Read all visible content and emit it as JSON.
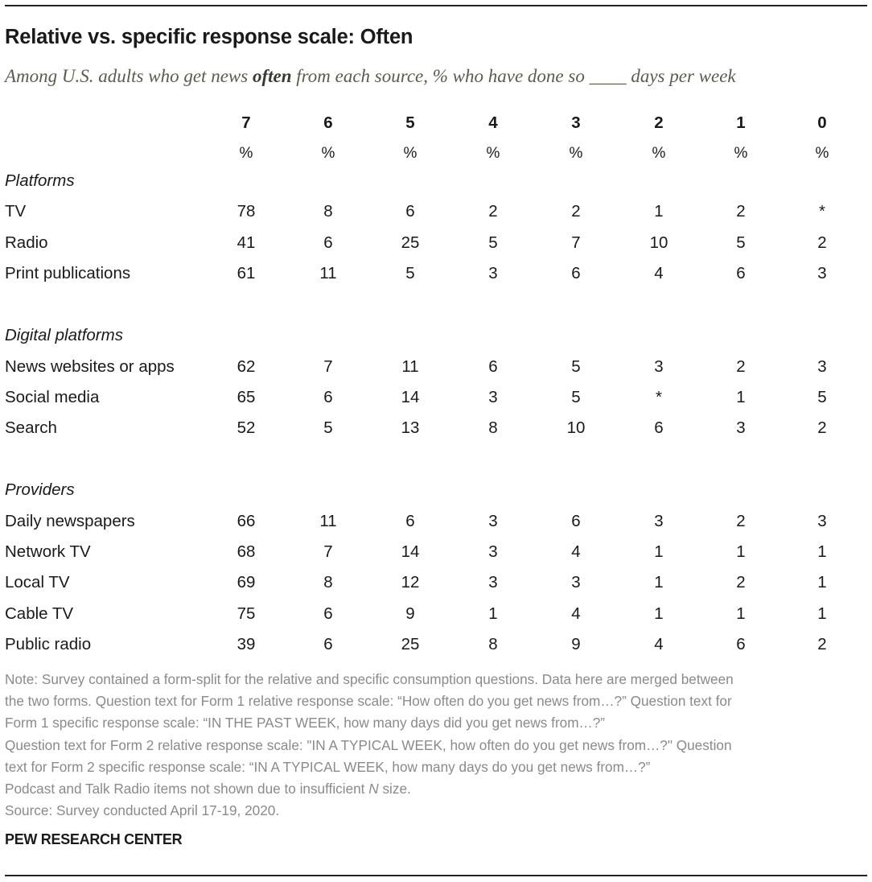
{
  "chart_data": {
    "type": "table",
    "title": "Relative vs. specific response scale: Often",
    "subtitle_parts": [
      "Among U.S. adults who get news ",
      "often",
      " from each source, % who have done so ____ days per week"
    ],
    "columns": [
      "7",
      "6",
      "5",
      "4",
      "3",
      "2",
      "1",
      "0"
    ],
    "unit_row": [
      "%",
      "%",
      "%",
      "%",
      "%",
      "%",
      "%",
      "%"
    ],
    "sections": [
      {
        "name": "Platforms",
        "rows": [
          {
            "label": "TV",
            "values": [
              "78",
              "8",
              "6",
              "2",
              "2",
              "1",
              "2",
              "*"
            ]
          },
          {
            "label": "Radio",
            "values": [
              "41",
              "6",
              "25",
              "5",
              "7",
              "10",
              "5",
              "2"
            ]
          },
          {
            "label": "Print publications",
            "values": [
              "61",
              "11",
              "5",
              "3",
              "6",
              "4",
              "6",
              "3"
            ]
          }
        ]
      },
      {
        "name": "Digital platforms",
        "rows": [
          {
            "label": "News websites or apps",
            "values": [
              "62",
              "7",
              "11",
              "6",
              "5",
              "3",
              "2",
              "3"
            ]
          },
          {
            "label": "Social media",
            "values": [
              "65",
              "6",
              "14",
              "3",
              "5",
              "*",
              "1",
              "5"
            ]
          },
          {
            "label": "Search",
            "values": [
              "52",
              "5",
              "13",
              "8",
              "10",
              "6",
              "3",
              "2"
            ]
          }
        ]
      },
      {
        "name": "Providers",
        "rows": [
          {
            "label": "Daily newspapers",
            "values": [
              "66",
              "11",
              "6",
              "3",
              "6",
              "3",
              "2",
              "3"
            ]
          },
          {
            "label": "Network TV",
            "values": [
              "68",
              "7",
              "14",
              "3",
              "4",
              "1",
              "1",
              "1"
            ]
          },
          {
            "label": "Local TV",
            "values": [
              "69",
              "8",
              "12",
              "3",
              "3",
              "1",
              "2",
              "1"
            ]
          },
          {
            "label": "Cable TV",
            "values": [
              "75",
              "6",
              "9",
              "1",
              "4",
              "1",
              "1",
              "1"
            ]
          },
          {
            "label": "Public radio",
            "values": [
              "39",
              "6",
              "25",
              "8",
              "9",
              "4",
              "6",
              "2"
            ]
          }
        ]
      }
    ]
  },
  "notes": [
    "Note: Survey contained a form-split for the relative and specific consumption questions. Data here are merged between",
    "the two forms. Question text for Form 1 relative response scale: “How often do you get news from…?” Question text for",
    "Form 1 specific response scale: “IN THE PAST WEEK, how many days did you get news from…?”",
    "Question text for Form 2 relative response scale: \"IN A TYPICAL WEEK, how often do you get news from…?\" Question",
    "text for Form 2 specific response scale: “IN A TYPICAL WEEK, how many days do you get news from…?”"
  ],
  "podcast_note": {
    "before": "Podcast and Talk Radio items not shown due to insufficient ",
    "italic": "N",
    "after": " size."
  },
  "source": "Source: Survey conducted April 17-19, 2020.",
  "brand": "PEW RESEARCH CENTER",
  "colors": {
    "text": "#1a1a1a",
    "subtitle": "#5d5a4e",
    "notes": "#8a8a8a",
    "rule": "#222222"
  }
}
